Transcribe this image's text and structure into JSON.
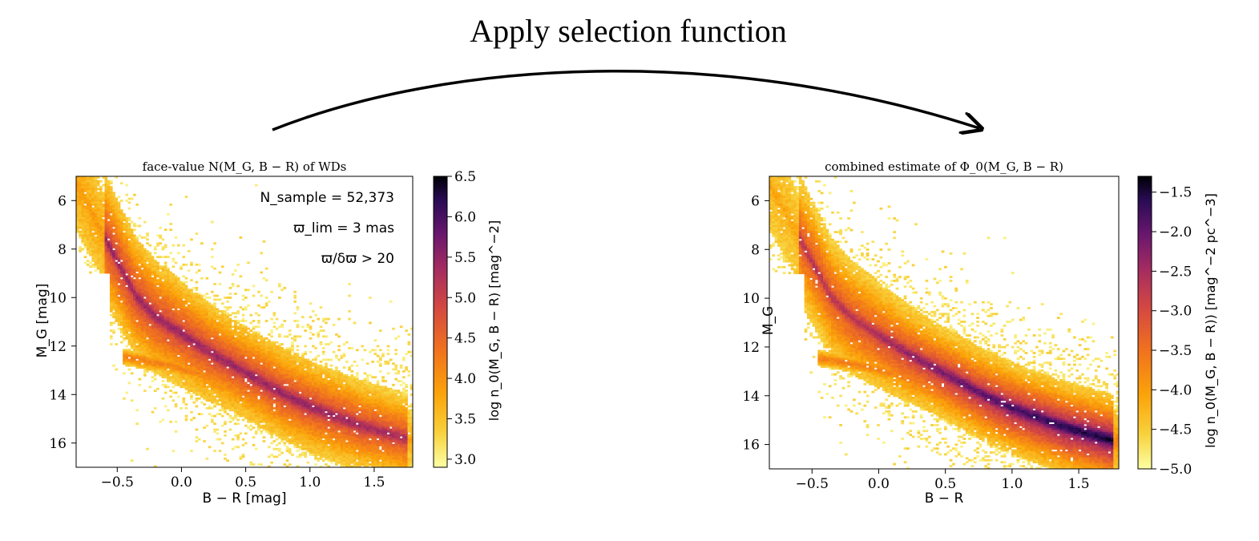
{
  "figure": {
    "title": "Apply selection function"
  },
  "chart_data": [
    {
      "type": "heatmap",
      "title": "face-value N(M_G, B − R) of WDs",
      "xlabel": "B − R [mag]",
      "ylabel": "M_G [mag]",
      "colorbar_label": "log n_0(M_G, B − R) [mag^−2]",
      "xlim": [
        -0.82,
        1.8
      ],
      "ylim": [
        17.0,
        5.0
      ],
      "y_inverted": true,
      "xticks": [
        -0.5,
        0.0,
        0.5,
        1.0,
        1.5
      ],
      "xtick_labels": [
        "−0.5",
        "0.0",
        "0.5",
        "1.0",
        "1.5"
      ],
      "yticks": [
        6,
        8,
        10,
        12,
        14,
        16
      ],
      "ytick_labels": [
        "6",
        "8",
        "10",
        "12",
        "14",
        "16"
      ],
      "colorbar_range": [
        2.9,
        6.5
      ],
      "colorbar_ticks": [
        3.0,
        3.5,
        4.0,
        4.5,
        5.0,
        5.5,
        6.0,
        6.5
      ],
      "colorbar_tick_labels": [
        "3.0",
        "3.5",
        "4.0",
        "4.5",
        "5.0",
        "5.5",
        "6.0",
        "6.5"
      ],
      "colormap": "inferno_r",
      "annotations": [
        "N_sample = 52,373",
        "ϖ_lim = 3 mas",
        "ϖ/δϖ > 20"
      ],
      "ridge": {
        "description": "main white dwarf cooling sequence",
        "x": [
          -0.5,
          -0.35,
          -0.2,
          0.0,
          0.2,
          0.4,
          0.6,
          0.8,
          1.0,
          1.2,
          1.4,
          1.6
        ],
        "y": [
          8.5,
          10.0,
          10.8,
          11.5,
          12.2,
          12.8,
          13.4,
          14.0,
          14.5,
          14.9,
          15.3,
          15.6
        ]
      },
      "secondary_branch": {
        "x": [
          -0.3,
          -0.1,
          0.1,
          0.3,
          0.5
        ],
        "y": [
          12.6,
          12.8,
          13.1,
          13.4,
          13.7
        ]
      }
    },
    {
      "type": "heatmap",
      "title": "combined estimate of Φ_0(M_G, B − R)",
      "xlabel": "B − R",
      "ylabel": "M_G",
      "colorbar_label": "log n_0(M_G, B − R)) [mag^−2 pc^−3]",
      "xlim": [
        -0.82,
        1.8
      ],
      "ylim": [
        17.0,
        5.0
      ],
      "y_inverted": true,
      "xticks": [
        -0.5,
        0.0,
        0.5,
        1.0,
        1.5
      ],
      "xtick_labels": [
        "−0.5",
        "0.0",
        "0.5",
        "1.0",
        "1.5"
      ],
      "yticks": [
        6,
        8,
        10,
        12,
        14,
        16
      ],
      "ytick_labels": [
        "6",
        "8",
        "10",
        "12",
        "14",
        "16"
      ],
      "colorbar_range": [
        -5.0,
        -1.3
      ],
      "colorbar_ticks": [
        -5.0,
        -4.5,
        -4.0,
        -3.5,
        -3.0,
        -2.5,
        -2.0,
        -1.5
      ],
      "colorbar_tick_labels": [
        "−5.0",
        "−4.5",
        "−4.0",
        "−3.5",
        "−3.0",
        "−2.5",
        "−2.0",
        "−1.5"
      ],
      "colormap": "inferno_r",
      "ridge": {
        "description": "main white dwarf cooling sequence",
        "x": [
          -0.5,
          -0.35,
          -0.2,
          0.0,
          0.2,
          0.4,
          0.6,
          0.8,
          1.0,
          1.2,
          1.4,
          1.6
        ],
        "y": [
          8.5,
          10.0,
          10.8,
          11.5,
          12.2,
          12.8,
          13.4,
          14.0,
          14.5,
          14.9,
          15.3,
          15.6
        ]
      },
      "secondary_branch": {
        "x": [
          -0.3,
          -0.1,
          0.1,
          0.3,
          0.5
        ],
        "y": [
          12.6,
          12.8,
          13.1,
          13.4,
          13.7
        ]
      }
    }
  ]
}
